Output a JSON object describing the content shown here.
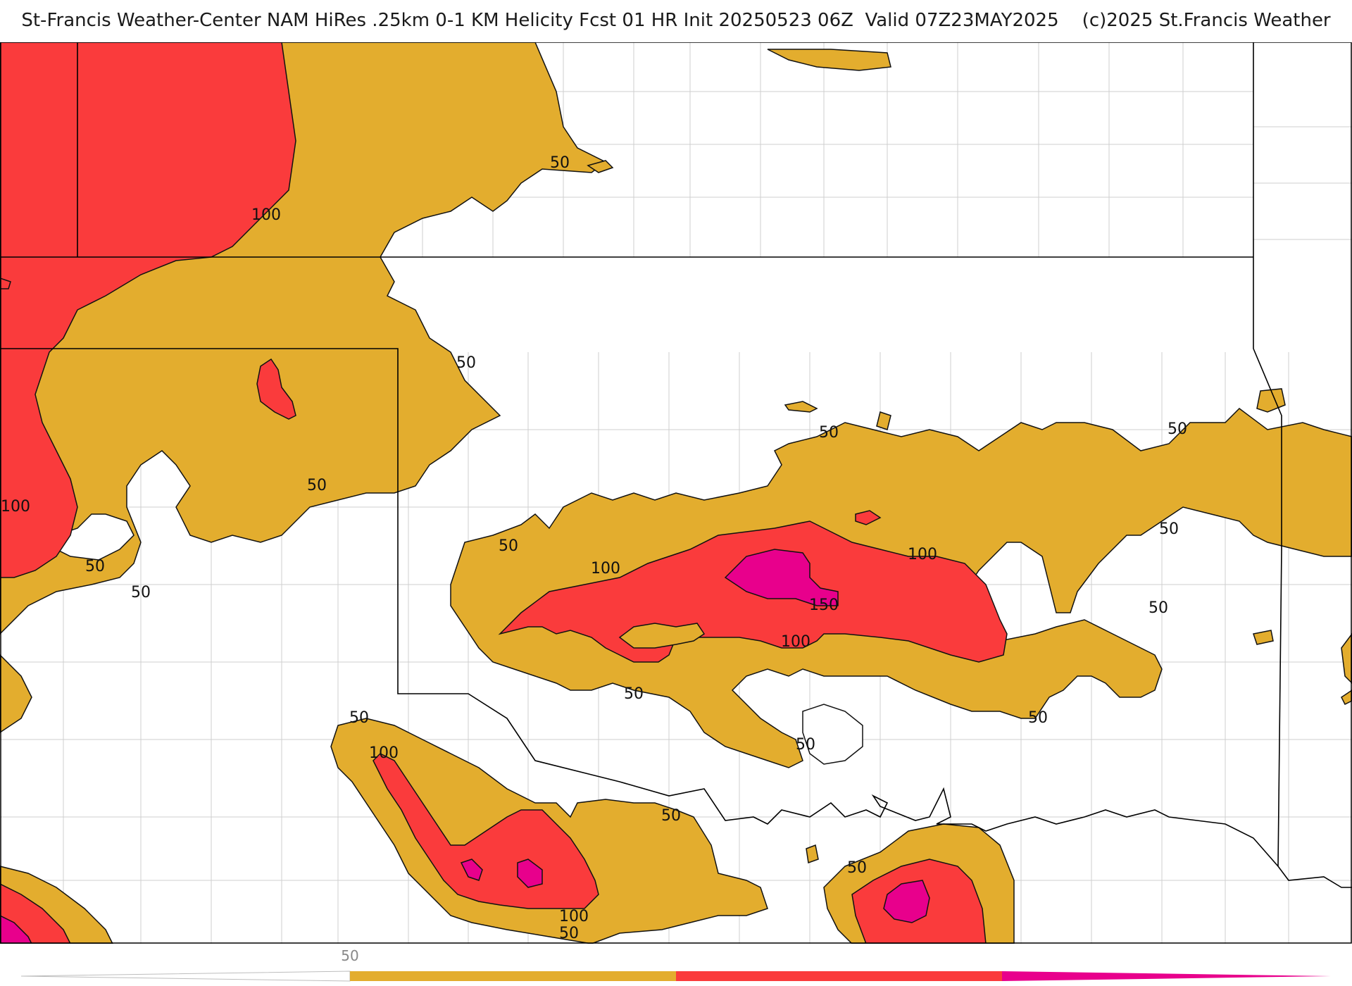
{
  "title": "St-Francis Weather-Center NAM HiRes .25km 0-1 KM Helicity Fcst 01 HR Init 20250523 06Z  Valid 07Z23MAY2025    (c)2025 St.Francis Weather",
  "colors": {
    "level_50": "#e3ad2e",
    "level_100": "#fa3b3c",
    "level_150": "#e8008c",
    "border": "#000000",
    "county": "#c8c8c8"
  },
  "contour_labels": [
    "50",
    "100",
    "150"
  ],
  "legend": {
    "label": "50",
    "bands": [
      "below-50",
      "50-100",
      "100-150",
      "above-150"
    ]
  }
}
